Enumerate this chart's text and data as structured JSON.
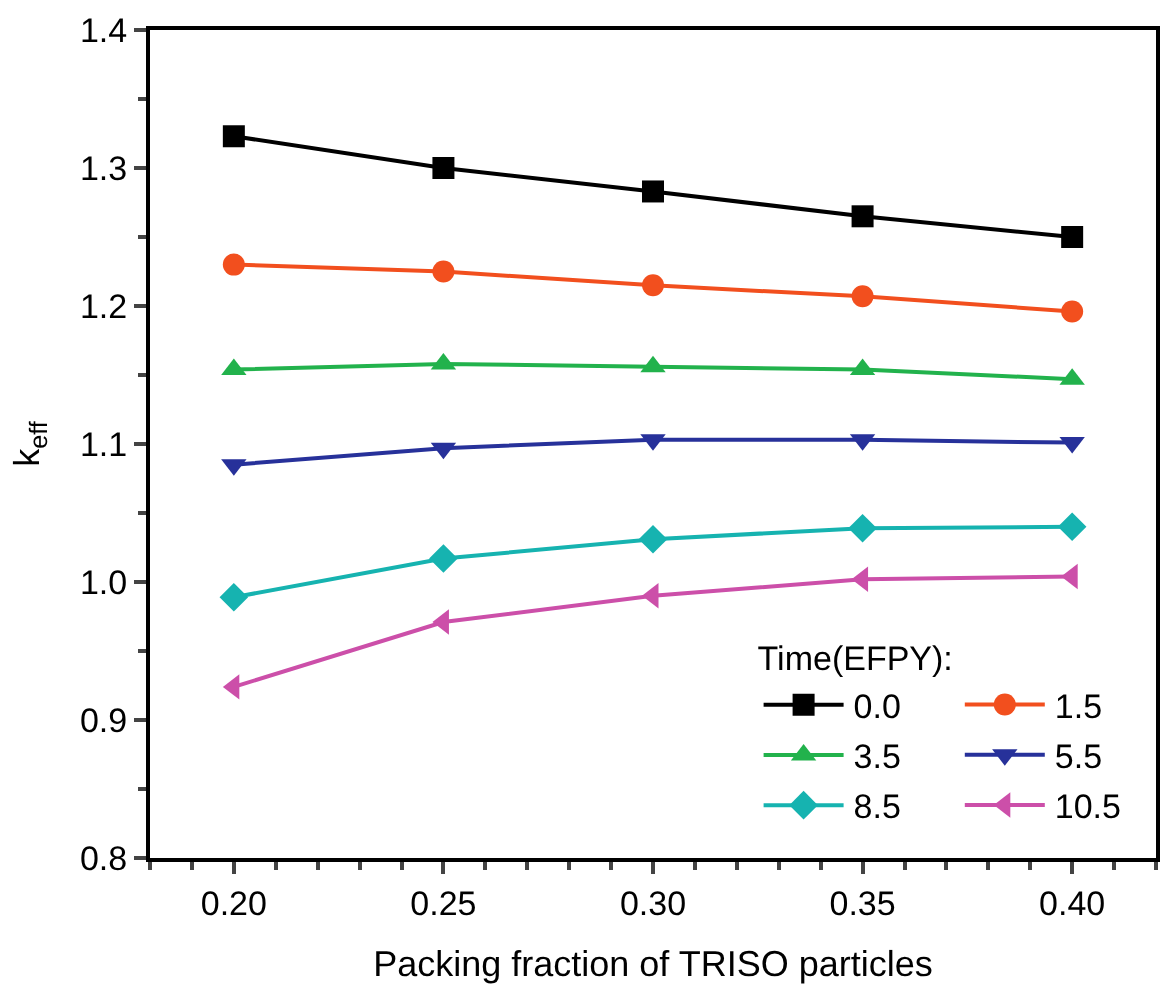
{
  "chart_data": {
    "type": "line",
    "xlabel": "Packing fraction of TRISO particles",
    "ylabel": "k$_{eff}$",
    "legend_title": "Time(EFPY):",
    "x": [
      0.2,
      0.25,
      0.3,
      0.35,
      0.4
    ],
    "xlim": [
      0.18,
      0.42
    ],
    "xticks": [
      {
        "value": 0.2,
        "label": "0.20"
      },
      {
        "value": 0.25,
        "label": "0.25"
      },
      {
        "value": 0.3,
        "label": "0.30"
      },
      {
        "value": 0.35,
        "label": "0.35"
      },
      {
        "value": 0.4,
        "label": "0.40"
      }
    ],
    "ylim": [
      0.8,
      1.4
    ],
    "yticks": [
      {
        "value": 0.8,
        "label": "0.8"
      },
      {
        "value": 0.9,
        "label": "0.9"
      },
      {
        "value": 1.0,
        "label": "1.0"
      },
      {
        "value": 1.1,
        "label": "1.1"
      },
      {
        "value": 1.2,
        "label": "1.2"
      },
      {
        "value": 1.3,
        "label": "1.3"
      },
      {
        "value": 1.4,
        "label": "1.4"
      }
    ],
    "legend": "bottom right",
    "line_style": "solid",
    "series": [
      {
        "name": "0.0",
        "color": "#000000",
        "marker": "square",
        "values": [
          1.323,
          1.3,
          1.283,
          1.265,
          1.25
        ]
      },
      {
        "name": "1.5",
        "color": "#f24f1e",
        "marker": "circle",
        "values": [
          1.23,
          1.225,
          1.215,
          1.207,
          1.196
        ]
      },
      {
        "name": "3.5",
        "color": "#22b24c",
        "marker": "triangle",
        "values": [
          1.154,
          1.158,
          1.156,
          1.154,
          1.147
        ]
      },
      {
        "name": "5.5",
        "color": "#27319a",
        "marker": "triangle-down",
        "values": [
          1.085,
          1.097,
          1.103,
          1.103,
          1.101
        ]
      },
      {
        "name": "8.5",
        "color": "#16b3b0",
        "marker": "diamond",
        "values": [
          0.989,
          1.017,
          1.031,
          1.039,
          1.04
        ]
      },
      {
        "name": "10.5",
        "color": "#cc4fa9",
        "marker": "triangle-left",
        "values": [
          0.924,
          0.971,
          0.99,
          1.002,
          1.004
        ]
      }
    ]
  }
}
